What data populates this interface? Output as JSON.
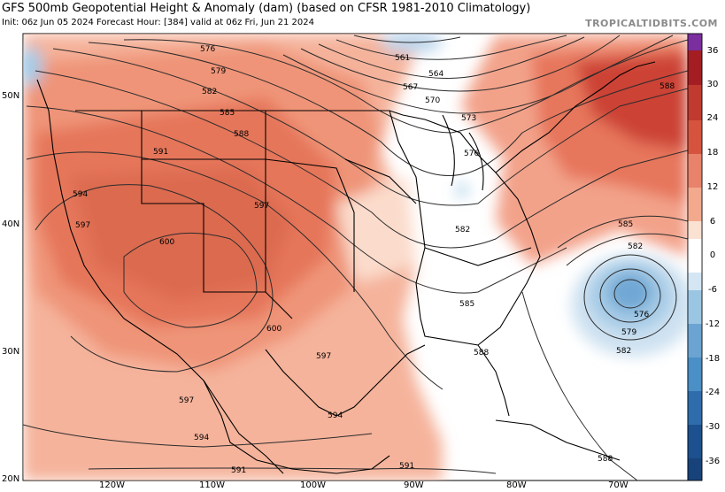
{
  "header": {
    "title": "GFS 500mb Geopotential Height & Anomaly (dam) (based on CFSR 1981-2010 Climatology)",
    "subtitle": "Init: 06z Jun 05 2024   Forecast Hour: [384]   valid at 06z Fri, Jun 21 2024",
    "brand": "TROPICALTIDBITS.COM"
  },
  "axes": {
    "lat_labels": [
      "50N",
      "40N",
      "30N",
      "20N"
    ],
    "lon_labels": [
      "120W",
      "110W",
      "100W",
      "90W",
      "80W",
      "70W"
    ]
  },
  "contours": [
    "561",
    "564",
    "567",
    "570",
    "573",
    "576",
    "579",
    "582",
    "585",
    "588",
    "591",
    "594",
    "597",
    "600"
  ],
  "contour_labels": {
    "c576": "576",
    "c579": "579",
    "c582": "582",
    "c585": "585",
    "c588": "588",
    "c591": "591",
    "c594": "594",
    "c597": "597",
    "c600": "600",
    "c561": "561",
    "c564": "564",
    "c567": "567",
    "c570": "570",
    "c573": "573"
  },
  "colorbar": {
    "labels": [
      "36",
      "30",
      "24",
      "18",
      "12",
      "6",
      "0",
      "-6",
      "-12",
      "-18",
      "-24",
      "-30",
      "-36"
    ],
    "colors": {
      "top_purple": "#7b2f9e",
      "pos_dark": "#a31d22",
      "pos_mid": "#d6543e",
      "pos_light": "#f3a98e",
      "pos_pale": "#fbe1d2",
      "neg_pale": "#d4e6f3",
      "neg_light": "#9ac6e4",
      "neg_mid": "#4a8fc5",
      "neg_dark": "#17437a"
    }
  }
}
